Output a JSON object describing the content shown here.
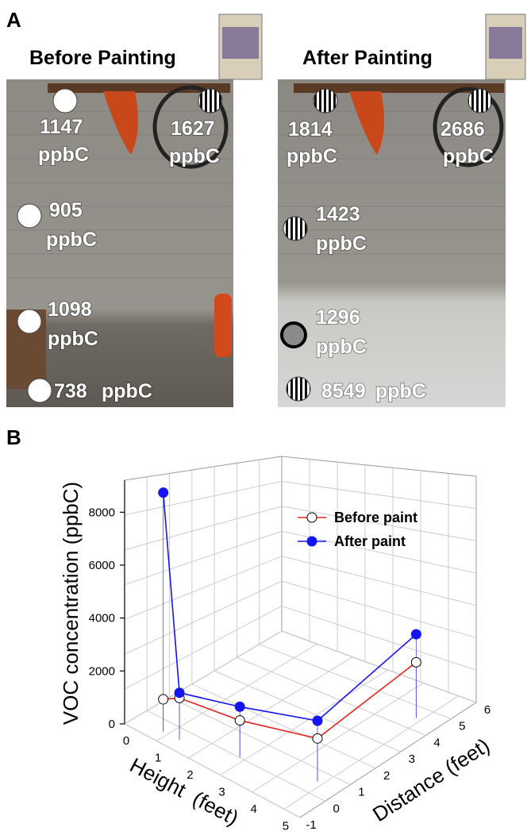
{
  "panel_labels": [
    "A",
    "B"
  ],
  "panel_a": {
    "unit": "ppbC",
    "before": {
      "title": "Before Painting",
      "readings": [
        1147,
        1627,
        905,
        1098,
        738
      ]
    },
    "after": {
      "title": "After Painting",
      "readings": [
        1814,
        2686,
        1423,
        1296,
        8549
      ]
    }
  },
  "chart_data": {
    "type": "line3d",
    "zlabel": "VOC concentration (ppbC)",
    "xlabel": "Height  (feet)",
    "ylabel": "Distance (feet)",
    "xlim": [
      0,
      5.5
    ],
    "xticks": [
      0,
      1,
      2,
      3,
      4,
      5
    ],
    "ylim": [
      -1,
      6
    ],
    "yticks": [
      -1,
      0,
      1,
      2,
      3,
      4,
      5,
      6
    ],
    "zlim": [
      0,
      9000
    ],
    "zticks": [
      0,
      2000,
      4000,
      6000,
      8000
    ],
    "legend": "upper right",
    "series": [
      {
        "name": "Before paint",
        "color": "#e8231f",
        "marker": "open",
        "x": [
          0.5,
          1,
          2.5,
          4.5,
          4.5
        ],
        "y": [
          0,
          0,
          0.5,
          1,
          5
        ],
        "values": [
          738,
          1098,
          905,
          1147,
          1627
        ]
      },
      {
        "name": "After paint",
        "color": "#1414f0",
        "marker": "filled",
        "x": [
          0.5,
          1,
          2.5,
          4.5,
          4.5
        ],
        "y": [
          0,
          0,
          0.5,
          1,
          5
        ],
        "values": [
          8549,
          1296,
          1423,
          1814,
          2686
        ]
      }
    ]
  }
}
